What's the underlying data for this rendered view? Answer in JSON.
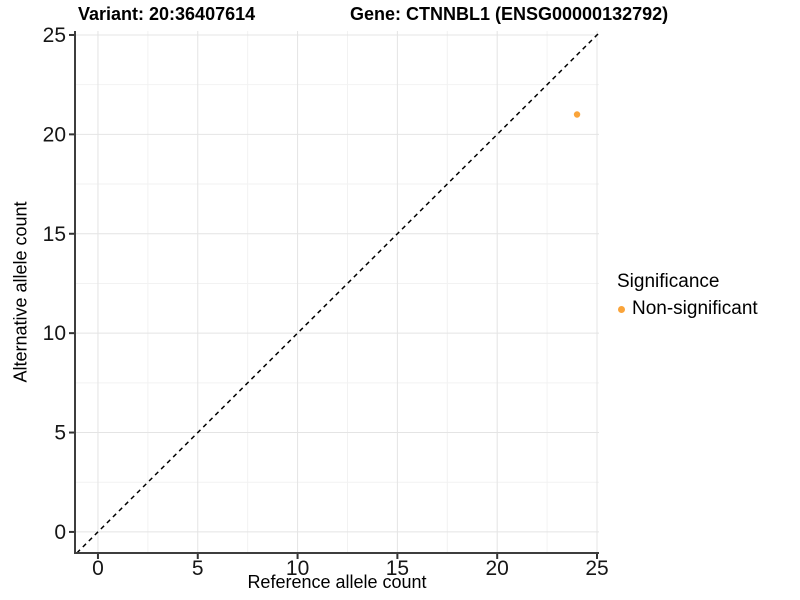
{
  "chart_data": {
    "type": "scatter",
    "title_left": "Variant: 20:36407614",
    "title_right": "Gene: CTNNBL1 (ENSG00000132792)",
    "xlabel": "Reference allele count",
    "ylabel": "Alternative allele count",
    "xlim": [
      -1.15,
      25.1
    ],
    "ylim": [
      -1.06,
      25.2
    ],
    "x_ticks": [
      0,
      5,
      10,
      15,
      20,
      25
    ],
    "y_ticks": [
      0,
      5,
      10,
      15,
      20,
      25
    ],
    "minor_grid_step": 2.5,
    "grid": "major+minor",
    "reference_line": {
      "label": "identity y = x",
      "style": "dashed",
      "color": "#000000"
    },
    "series": [
      {
        "name": "Non-significant",
        "color": "#FAA43A",
        "points": [
          {
            "x": 24,
            "y": 21
          }
        ]
      }
    ],
    "legend": {
      "title": "Significance",
      "position": "right",
      "items": [
        {
          "label": "Non-significant",
          "color": "#FAA43A"
        }
      ]
    }
  },
  "colors": {
    "background": "#FFFFFF",
    "point_nonsignificant": "#FAA43A",
    "grid_major": "#E4E4E4",
    "grid_minor": "#F2F2F2",
    "axis_line": "#3D3D3D",
    "tick_mark": "#333333",
    "tick_label": "#161616",
    "text": "#000000"
  }
}
